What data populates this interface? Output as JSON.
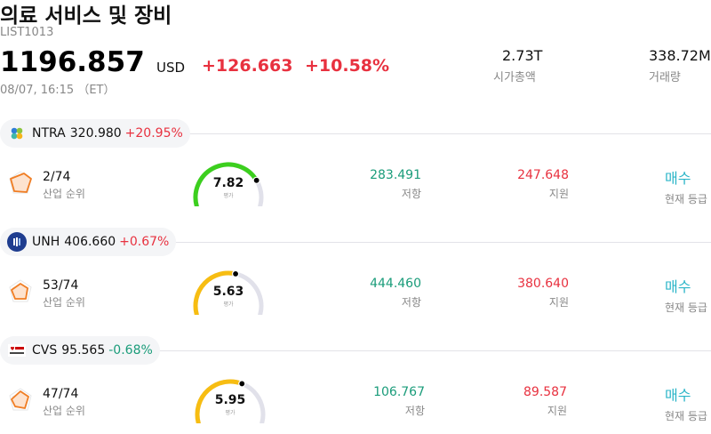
{
  "header": {
    "title": "의료 서비스 및 장비",
    "ticker": "LIST1013",
    "price": "1196.857",
    "currency": "USD",
    "change": "+126.663",
    "change_pct": "+10.58%",
    "timestamp": "08/07, 16:15 （ET）"
  },
  "stats": {
    "market_cap_value": "2.73T",
    "market_cap_label": "시가총액",
    "volume_value": "338.72M",
    "volume_label": "거래량"
  },
  "colors": {
    "up": "#e8313f",
    "down": "#1a9c7a",
    "rating": "#2bb5c8"
  },
  "stocks": [
    {
      "symbol": "NTRA",
      "price": "320.980",
      "change_pct": "+20.95%",
      "direction": "up",
      "logo": "natera-logo",
      "rank_value": "2/74",
      "rank_label": "산업 순위",
      "score": "7.82",
      "score_fraction": 0.78,
      "score_label": "평가",
      "gauge_color": "#3ccf1e",
      "resistance_value": "283.491",
      "resistance_label": "저항",
      "support_value": "247.648",
      "support_label": "지원",
      "rating_value": "매수",
      "rating_label": "현재 등급"
    },
    {
      "symbol": "UNH",
      "price": "406.660",
      "change_pct": "+0.67%",
      "direction": "up",
      "logo": "unitedhealth-logo",
      "rank_value": "53/74",
      "rank_label": "산업 순위",
      "score": "5.63",
      "score_fraction": 0.56,
      "score_label": "평가",
      "gauge_color": "#f7bd12",
      "resistance_value": "444.460",
      "resistance_label": "저항",
      "support_value": "380.640",
      "support_label": "지원",
      "rating_value": "매수",
      "rating_label": "현재 등급"
    },
    {
      "symbol": "CVS",
      "price": "95.565",
      "change_pct": "-0.68%",
      "direction": "down",
      "logo": "cvs-logo",
      "rank_value": "47/74",
      "rank_label": "산업 순위",
      "score": "5.95",
      "score_fraction": 0.6,
      "score_label": "평가",
      "gauge_color": "#f7bd12",
      "resistance_value": "106.767",
      "resistance_label": "저항",
      "support_value": "89.587",
      "support_label": "지원",
      "rating_value": "매수",
      "rating_label": "현재 등급"
    }
  ]
}
